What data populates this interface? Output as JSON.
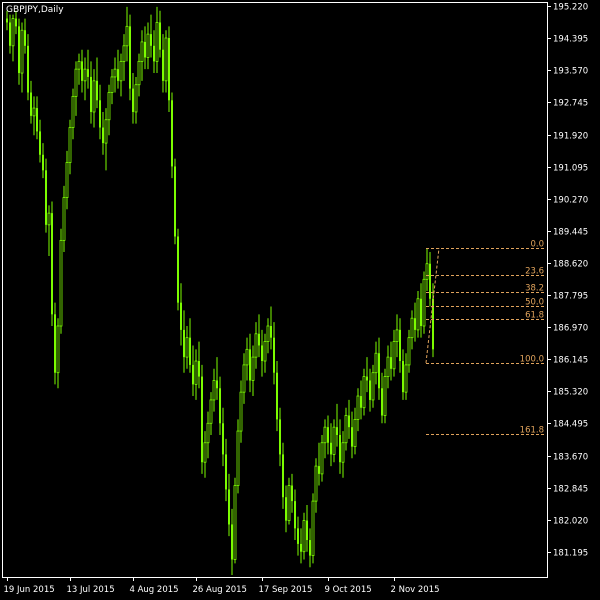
{
  "chart_data": {
    "type": "candlestick",
    "title": "GBPJPY,Daily",
    "symbol": "GBPJPY",
    "timeframe": "Daily",
    "colors": {
      "background": "#000000",
      "foreground": "#ffffff",
      "candle": "#7cfc00",
      "fibonacci": "#e0a35c"
    },
    "y_axis": {
      "position": "right",
      "range": [
        180.55,
        195.3
      ],
      "ticks": [
        "195.220",
        "194.395",
        "193.570",
        "192.745",
        "191.920",
        "191.095",
        "190.270",
        "189.445",
        "188.620",
        "187.795",
        "186.970",
        "186.145",
        "185.320",
        "184.495",
        "183.670",
        "182.845",
        "182.020",
        "181.195"
      ]
    },
    "x_axis": {
      "ticks": [
        "19 Jun 2015",
        "13 Jul 2015",
        "4 Aug 2015",
        "26 Aug 2015",
        "17 Sep 2015",
        "9 Oct 2015",
        "2 Nov 2015"
      ]
    },
    "fibonacci": {
      "high": 189.0,
      "low": 186.05,
      "levels": [
        {
          "label": "0.0",
          "ratio": 0.0
        },
        {
          "label": "23.6",
          "ratio": 0.236
        },
        {
          "label": "38.2",
          "ratio": 0.382
        },
        {
          "label": "50.0",
          "ratio": 0.5
        },
        {
          "label": "61.8",
          "ratio": 0.618
        },
        {
          "label": "100.0",
          "ratio": 1.0
        },
        {
          "label": "161.8",
          "ratio": 1.618
        }
      ]
    },
    "candles": [
      [
        194.9,
        195.1,
        194.6,
        194.8
      ],
      [
        194.8,
        195.0,
        194.0,
        194.2
      ],
      [
        194.2,
        195.0,
        193.8,
        194.9
      ],
      [
        194.9,
        195.1,
        194.5,
        194.7
      ],
      [
        194.7,
        194.9,
        193.2,
        193.5
      ],
      [
        193.5,
        194.8,
        193.0,
        194.6
      ],
      [
        194.6,
        194.9,
        194.0,
        194.2
      ],
      [
        194.2,
        194.5,
        192.8,
        193.0
      ],
      [
        193.0,
        193.3,
        192.2,
        192.4
      ],
      [
        192.4,
        192.9,
        191.9,
        192.6
      ],
      [
        192.6,
        192.9,
        191.8,
        192.0
      ],
      [
        192.0,
        192.3,
        191.2,
        191.4
      ],
      [
        191.4,
        191.7,
        190.8,
        191.0
      ],
      [
        191.0,
        191.3,
        189.4,
        189.6
      ],
      [
        189.6,
        190.1,
        188.8,
        189.9
      ],
      [
        189.9,
        190.2,
        187.0,
        187.3
      ],
      [
        187.3,
        187.6,
        185.5,
        185.8
      ],
      [
        185.8,
        187.2,
        185.4,
        187.0
      ],
      [
        187.0,
        189.5,
        186.8,
        189.2
      ],
      [
        189.2,
        190.6,
        188.9,
        190.3
      ],
      [
        190.3,
        191.5,
        190.0,
        191.2
      ],
      [
        191.2,
        192.3,
        190.9,
        192.1
      ],
      [
        192.1,
        193.1,
        191.8,
        192.9
      ],
      [
        192.9,
        193.8,
        192.4,
        193.6
      ],
      [
        193.6,
        194.0,
        193.2,
        193.8
      ],
      [
        193.8,
        194.1,
        193.0,
        193.3
      ],
      [
        193.3,
        193.9,
        192.8,
        193.6
      ],
      [
        193.6,
        194.1,
        193.1,
        193.4
      ],
      [
        193.4,
        193.8,
        192.2,
        192.5
      ],
      [
        192.5,
        193.6,
        192.1,
        193.3
      ],
      [
        193.3,
        193.9,
        192.6,
        192.8
      ],
      [
        192.8,
        193.2,
        191.8,
        192.1
      ],
      [
        192.1,
        192.5,
        191.4,
        191.7
      ],
      [
        191.7,
        192.6,
        191.0,
        192.3
      ],
      [
        192.3,
        193.2,
        191.9,
        193.0
      ],
      [
        193.0,
        193.6,
        192.7,
        193.4
      ],
      [
        193.4,
        193.9,
        193.0,
        193.6
      ],
      [
        193.6,
        194.1,
        193.1,
        193.3
      ],
      [
        193.3,
        194.0,
        192.9,
        193.8
      ],
      [
        193.8,
        194.5,
        193.3,
        194.2
      ],
      [
        194.2,
        195.2,
        193.8,
        194.7
      ],
      [
        194.7,
        195.0,
        192.8,
        193.1
      ],
      [
        193.1,
        193.5,
        192.2,
        192.5
      ],
      [
        192.5,
        193.4,
        192.2,
        193.2
      ],
      [
        193.2,
        194.0,
        192.9,
        193.8
      ],
      [
        193.8,
        194.6,
        193.3,
        194.3
      ],
      [
        194.3,
        194.7,
        193.6,
        193.9
      ],
      [
        193.9,
        194.8,
        193.6,
        194.5
      ],
      [
        194.5,
        195.0,
        193.9,
        194.2
      ],
      [
        194.2,
        194.6,
        193.5,
        193.8
      ],
      [
        193.8,
        195.2,
        193.5,
        194.8
      ],
      [
        194.8,
        195.1,
        193.9,
        194.1
      ],
      [
        194.1,
        194.5,
        193.0,
        193.3
      ],
      [
        193.3,
        194.6,
        193.0,
        194.4
      ],
      [
        194.4,
        194.7,
        192.5,
        192.8
      ],
      [
        192.8,
        193.0,
        190.8,
        191.1
      ],
      [
        191.1,
        191.3,
        189.1,
        189.3
      ],
      [
        189.3,
        189.5,
        187.4,
        187.6
      ],
      [
        187.6,
        188.1,
        186.5,
        186.9
      ],
      [
        186.9,
        187.4,
        185.8,
        186.2
      ],
      [
        186.2,
        187.0,
        185.9,
        186.7
      ],
      [
        186.7,
        187.2,
        185.8,
        186.0
      ],
      [
        186.0,
        186.5,
        185.2,
        185.5
      ],
      [
        185.5,
        186.4,
        185.1,
        186.1
      ],
      [
        186.1,
        186.6,
        185.4,
        185.7
      ],
      [
        185.7,
        186.0,
        183.2,
        183.5
      ],
      [
        183.5,
        184.3,
        183.1,
        184.0
      ],
      [
        184.0,
        184.8,
        183.6,
        184.5
      ],
      [
        184.5,
        185.3,
        184.2,
        185.1
      ],
      [
        185.1,
        185.9,
        184.8,
        185.6
      ],
      [
        185.6,
        186.2,
        185.1,
        185.4
      ],
      [
        185.4,
        185.7,
        184.2,
        184.5
      ],
      [
        184.5,
        184.9,
        183.4,
        183.7
      ],
      [
        183.7,
        184.1,
        182.5,
        182.8
      ],
      [
        182.8,
        183.2,
        181.6,
        181.9
      ],
      [
        181.9,
        182.3,
        180.6,
        181.0
      ],
      [
        181.0,
        183.1,
        180.9,
        182.9
      ],
      [
        182.9,
        184.6,
        182.7,
        184.3
      ],
      [
        184.3,
        185.6,
        184.0,
        185.3
      ],
      [
        185.3,
        186.3,
        185.0,
        186.0
      ],
      [
        186.0,
        186.7,
        185.6,
        186.4
      ],
      [
        186.4,
        186.8,
        185.3,
        185.6
      ],
      [
        185.6,
        186.5,
        185.2,
        186.2
      ],
      [
        186.2,
        187.1,
        185.9,
        186.8
      ],
      [
        186.8,
        187.3,
        186.2,
        186.5
      ],
      [
        186.5,
        186.9,
        185.7,
        186.1
      ],
      [
        186.1,
        186.8,
        185.8,
        186.6
      ],
      [
        186.6,
        187.2,
        186.3,
        187.0
      ],
      [
        187.0,
        187.5,
        186.4,
        186.7
      ],
      [
        186.7,
        187.1,
        185.5,
        185.8
      ],
      [
        185.8,
        186.1,
        184.3,
        184.6
      ],
      [
        184.6,
        184.9,
        183.4,
        183.7
      ],
      [
        183.7,
        184.0,
        182.3,
        182.6
      ],
      [
        182.6,
        182.9,
        181.7,
        182.0
      ],
      [
        182.0,
        183.1,
        181.9,
        182.9
      ],
      [
        182.9,
        183.2,
        182.2,
        182.5
      ],
      [
        182.5,
        182.8,
        181.5,
        181.8
      ],
      [
        181.8,
        182.1,
        181.1,
        181.4
      ],
      [
        181.4,
        181.8,
        180.9,
        181.2
      ],
      [
        181.2,
        182.2,
        181.0,
        182.0
      ],
      [
        182.0,
        182.4,
        181.2,
        181.5
      ],
      [
        181.5,
        181.8,
        180.8,
        181.1
      ],
      [
        181.1,
        182.7,
        180.9,
        182.5
      ],
      [
        182.5,
        183.6,
        182.2,
        183.4
      ],
      [
        183.4,
        184.0,
        182.9,
        183.2
      ],
      [
        183.2,
        184.2,
        183.0,
        184.0
      ],
      [
        184.0,
        184.6,
        183.6,
        184.4
      ],
      [
        184.4,
        184.7,
        183.7,
        184.0
      ],
      [
        184.0,
        184.5,
        183.4,
        183.7
      ],
      [
        183.7,
        184.6,
        183.5,
        184.4
      ],
      [
        184.4,
        185.0,
        183.9,
        184.2
      ],
      [
        184.2,
        184.6,
        183.2,
        183.5
      ],
      [
        183.5,
        184.3,
        183.1,
        184.0
      ],
      [
        184.0,
        184.9,
        183.8,
        184.7
      ],
      [
        184.7,
        185.1,
        184.1,
        184.4
      ],
      [
        184.4,
        184.8,
        183.6,
        183.9
      ],
      [
        183.9,
        184.9,
        183.7,
        184.6
      ],
      [
        184.6,
        185.4,
        184.3,
        185.2
      ],
      [
        185.2,
        185.6,
        184.6,
        184.9
      ],
      [
        184.9,
        185.9,
        184.7,
        185.7
      ],
      [
        185.7,
        186.2,
        185.3,
        185.6
      ],
      [
        185.6,
        185.9,
        184.8,
        185.1
      ],
      [
        185.1,
        186.0,
        184.9,
        185.8
      ],
      [
        185.8,
        186.6,
        185.5,
        186.3
      ],
      [
        186.3,
        186.7,
        185.1,
        185.4
      ],
      [
        185.4,
        185.8,
        184.5,
        184.7
      ],
      [
        184.7,
        185.9,
        184.5,
        185.7
      ],
      [
        185.7,
        186.5,
        185.4,
        186.2
      ],
      [
        186.2,
        186.6,
        185.6,
        185.9
      ],
      [
        185.9,
        186.9,
        185.7,
        186.6
      ],
      [
        186.6,
        187.3,
        186.2,
        186.9
      ],
      [
        186.9,
        187.2,
        185.8,
        186.1
      ],
      [
        186.1,
        186.4,
        185.1,
        185.3
      ],
      [
        185.3,
        186.3,
        185.1,
        186.0
      ],
      [
        186.0,
        186.9,
        185.8,
        186.7
      ],
      [
        186.7,
        187.4,
        186.4,
        187.2
      ],
      [
        187.2,
        187.6,
        186.6,
        186.9
      ],
      [
        186.9,
        187.9,
        186.7,
        187.7
      ],
      [
        187.7,
        188.1,
        186.7,
        187.0
      ],
      [
        187.0,
        188.4,
        186.8,
        188.2
      ],
      [
        188.2,
        189.0,
        187.9,
        188.6
      ],
      [
        188.6,
        188.9,
        187.5,
        187.7
      ],
      [
        187.7,
        188.1,
        186.2,
        186.4
      ]
    ]
  }
}
